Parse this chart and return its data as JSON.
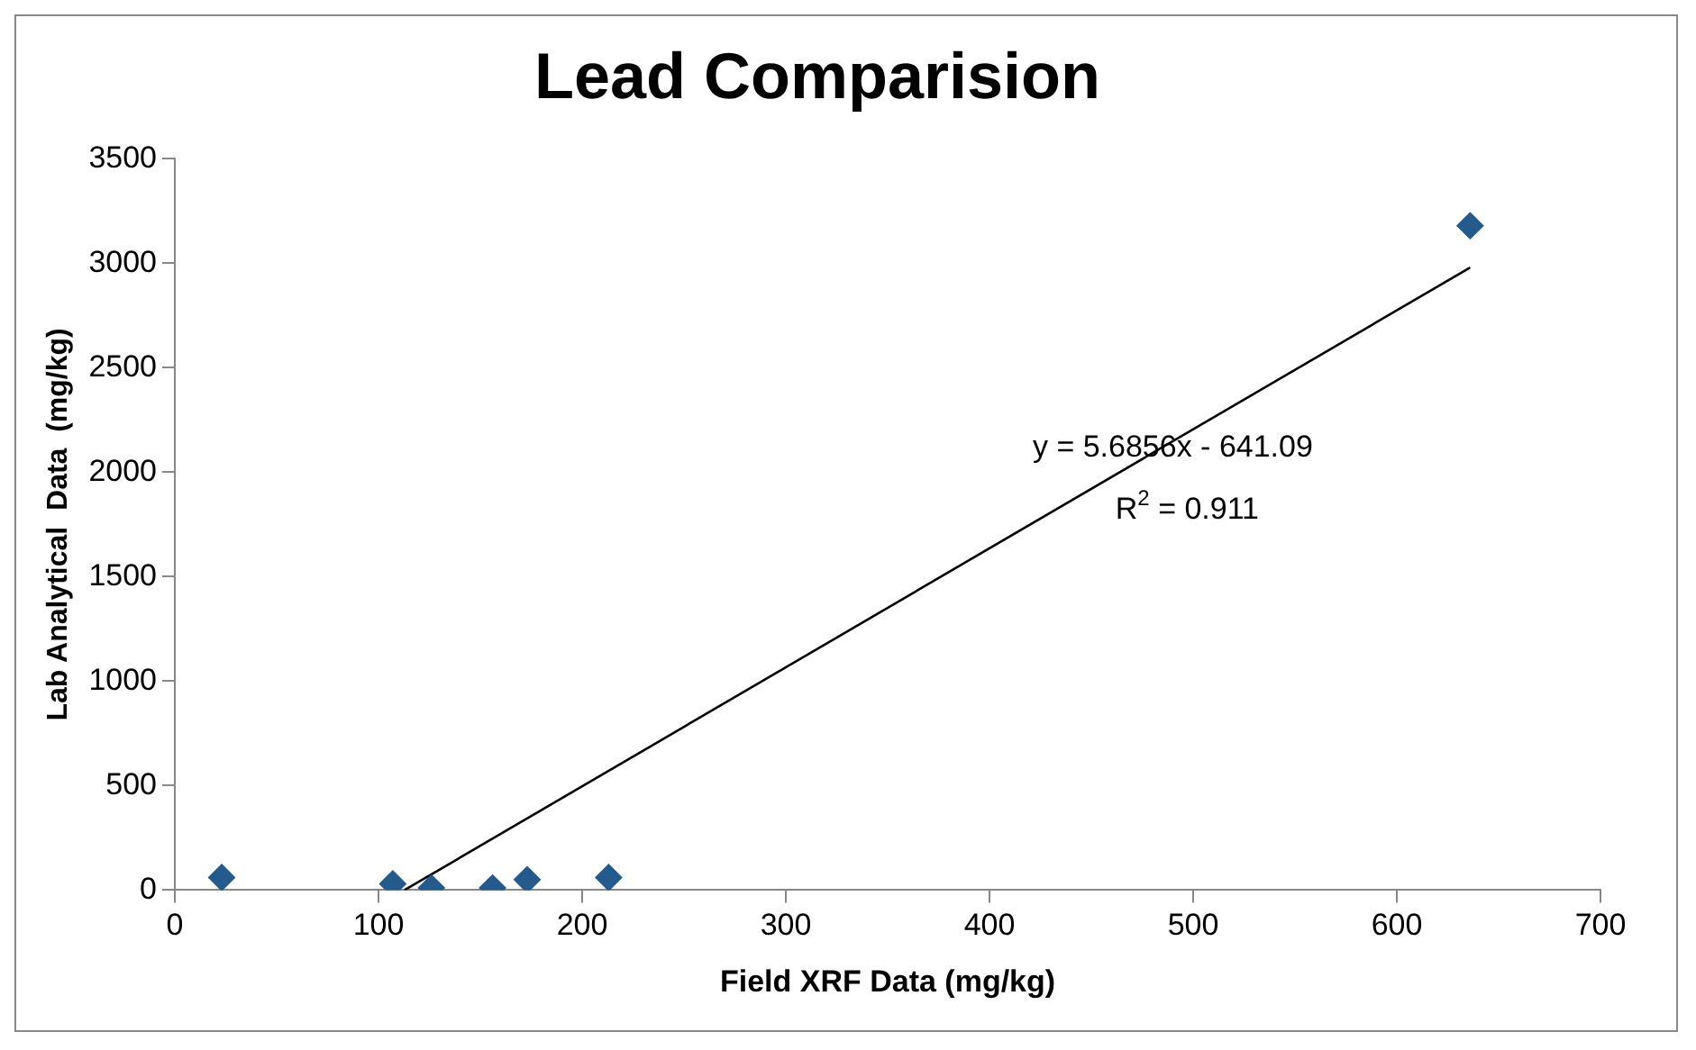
{
  "chart_data": {
    "type": "scatter",
    "title": "Lead Comparision",
    "xlabel": "Field XRF Data (mg/kg)",
    "ylabel": "Lab Analytical  Data  (mg/kg)",
    "xlim": [
      0,
      700
    ],
    "xticks": [
      0,
      100,
      200,
      300,
      400,
      500,
      600,
      700
    ],
    "ylim": [
      0,
      3500
    ],
    "yticks": [
      0,
      500,
      1000,
      1500,
      2000,
      2500,
      3000,
      3500
    ],
    "grid": false,
    "legend": false,
    "series": [
      {
        "type": "scatter",
        "marker": "diamond",
        "color": "#245a8c",
        "x": [
          23,
          107,
          126,
          156,
          173,
          213,
          636
        ],
        "values": [
          60,
          30,
          10,
          10,
          50,
          60,
          3180
        ]
      },
      {
        "type": "line",
        "marker": "none",
        "color": "#000000",
        "x": [
          112.75,
          636
        ],
        "values": [
          0,
          2980
        ]
      }
    ],
    "annotations": [
      "y = 5.6856x - 641.09",
      "R$^{2}$ = 0.911"
    ]
  }
}
